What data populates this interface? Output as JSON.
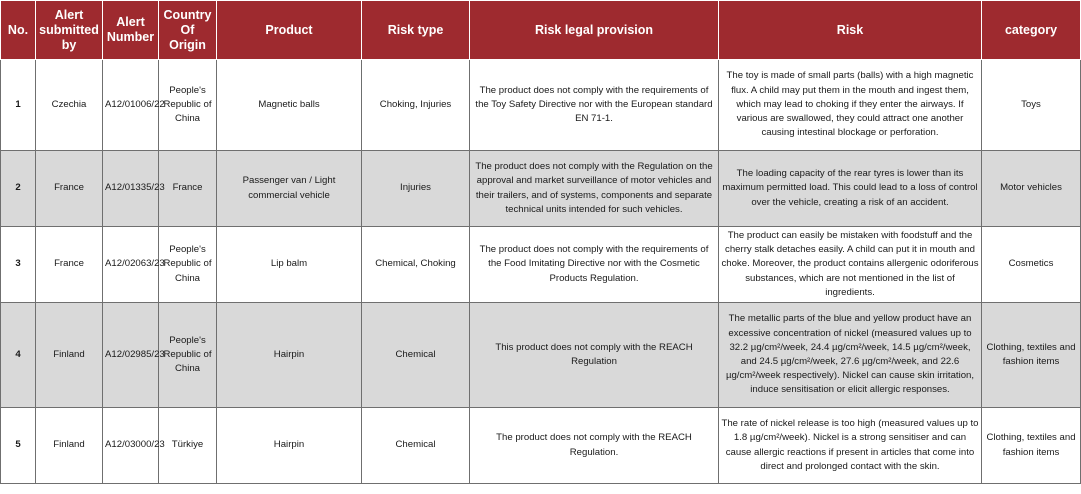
{
  "headers": {
    "no": "No.",
    "submitted_by": "Alert submitted by",
    "alert_number": "Alert Number",
    "country_of_origin": "Country Of Origin",
    "product": "Product",
    "risk_type": "Risk type",
    "legal_provision": "Risk legal provision",
    "risk": "Risk",
    "category": "category"
  },
  "rows": [
    {
      "no": "1",
      "submitted_by": "Czechia",
      "alert_number": "A12/01006/22",
      "country_of_origin": "People's Republic of China",
      "product": "Magnetic balls",
      "risk_type": "Choking, Injuries",
      "legal_provision": "The product does not comply with the requirements of the Toy Safety Directive nor with the European standard EN 71-1.",
      "risk": "The toy is made of small parts (balls) with a high magnetic flux. A child may put them in the mouth and ingest them, which may lead to choking if they enter the airways. If various are swallowed, they could attract one another causing intestinal blockage or perforation.",
      "category": "Toys"
    },
    {
      "no": "2",
      "submitted_by": "France",
      "alert_number": "A12/01335/23",
      "country_of_origin": "France",
      "product": "Passenger van / Light commercial vehicle",
      "risk_type": "Injuries",
      "legal_provision": "The product does not comply with the Regulation on the approval and market surveillance of motor vehicles and their trailers, and of systems, components and separate technical units intended for such vehicles.",
      "risk": "The loading capacity of the rear tyres is lower than its maximum permitted load. This could lead to a loss of control over the vehicle, creating a risk of an accident.",
      "category": "Motor vehicles"
    },
    {
      "no": "3",
      "submitted_by": "France",
      "alert_number": "A12/02063/23",
      "country_of_origin": "People's Republic of China",
      "product": "Lip balm",
      "risk_type": "Chemical, Choking",
      "legal_provision": "The product does not comply with the requirements of the Food Imitating Directive nor with the Cosmetic Products Regulation.",
      "risk": "The product can easily be mistaken with foodstuff and the cherry stalk detaches easily. A child can put it in mouth and choke. Moreover, the product contains allergenic odoriferous substances, which are not mentioned in the list of ingredients.",
      "category": "Cosmetics"
    },
    {
      "no": "4",
      "submitted_by": "Finland",
      "alert_number": "A12/02985/23",
      "country_of_origin": "People's Republic of China",
      "product": "Hairpin",
      "risk_type": "Chemical",
      "legal_provision": "This product does not comply with the REACH Regulation",
      "risk": "The metallic parts of the blue and yellow product have an excessive concentration of nickel (measured values up to 32.2 µg/cm²/week, 24.4 µg/cm²/week, 14.5 µg/cm²/week, and 24.5 µg/cm²/week, 27.6 µg/cm²/week, and 22.6 µg/cm²/week respectively). Nickel can cause skin irritation, induce sensitisation or elicit allergic responses.",
      "category": "Clothing, textiles and fashion items"
    },
    {
      "no": "5",
      "submitted_by": "Finland",
      "alert_number": "A12/03000/23",
      "country_of_origin": "Türkiye",
      "product": "Hairpin",
      "risk_type": "Chemical",
      "legal_provision": "The product does not comply with the REACH Regulation.",
      "risk": "The rate of nickel release is too high (measured values up to 1.8 µg/cm²/week). Nickel is a strong sensitiser and can cause allergic reactions if present in articles that come into direct and prolonged contact with the skin.",
      "category": "Clothing, textiles and fashion items"
    }
  ]
}
